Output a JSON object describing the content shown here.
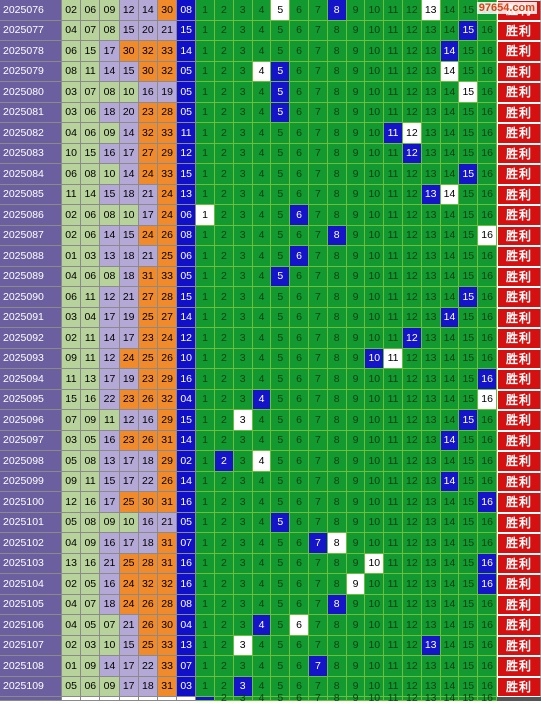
{
  "watermark": "97654.com",
  "result_label": "胜利",
  "colors": {
    "issue_bg": "#6b5fa0",
    "num_green": "#b7d29a",
    "num_lavender": "#b4a9d6",
    "num_orange": "#f08a2a",
    "num_blue": "#1010c8",
    "trend_green": "#129a30",
    "trend_hit": "#1414c8",
    "result_red": "#d41010"
  },
  "trend_numbers": [
    "1",
    "2",
    "3",
    "4",
    "5",
    "6",
    "7",
    "8",
    "9",
    "10",
    "11",
    "12",
    "13",
    "14",
    "15",
    "16"
  ],
  "rows": [
    {
      "issue": "2025076",
      "reds": [
        "02",
        "06",
        "09",
        "12",
        "14",
        "30"
      ],
      "blue": "08"
    },
    {
      "issue": "2025077",
      "reds": [
        "04",
        "07",
        "08",
        "15",
        "20",
        "21"
      ],
      "blue": "15"
    },
    {
      "issue": "2025078",
      "reds": [
        "06",
        "15",
        "17",
        "30",
        "32",
        "33"
      ],
      "blue": "14"
    },
    {
      "issue": "2025079",
      "reds": [
        "08",
        "11",
        "14",
        "15",
        "30",
        "32"
      ],
      "blue": "05"
    },
    {
      "issue": "2025080",
      "reds": [
        "03",
        "07",
        "08",
        "10",
        "16",
        "19"
      ],
      "blue": "05"
    },
    {
      "issue": "2025081",
      "reds": [
        "03",
        "06",
        "18",
        "20",
        "23",
        "28"
      ],
      "blue": "05"
    },
    {
      "issue": "2025082",
      "reds": [
        "04",
        "06",
        "09",
        "14",
        "32",
        "33"
      ],
      "blue": "11"
    },
    {
      "issue": "2025083",
      "reds": [
        "10",
        "15",
        "16",
        "17",
        "27",
        "29"
      ],
      "blue": "12"
    },
    {
      "issue": "2025084",
      "reds": [
        "06",
        "08",
        "10",
        "14",
        "24",
        "33"
      ],
      "blue": "15"
    },
    {
      "issue": "2025085",
      "reds": [
        "11",
        "14",
        "15",
        "18",
        "21",
        "24"
      ],
      "blue": "13"
    },
    {
      "issue": "2025086",
      "reds": [
        "02",
        "06",
        "08",
        "10",
        "17",
        "24"
      ],
      "blue": "06"
    },
    {
      "issue": "2025087",
      "reds": [
        "02",
        "06",
        "14",
        "15",
        "24",
        "26"
      ],
      "blue": "08"
    },
    {
      "issue": "2025088",
      "reds": [
        "01",
        "03",
        "13",
        "18",
        "21",
        "25"
      ],
      "blue": "06"
    },
    {
      "issue": "2025089",
      "reds": [
        "04",
        "06",
        "08",
        "18",
        "31",
        "33"
      ],
      "blue": "05"
    },
    {
      "issue": "2025090",
      "reds": [
        "06",
        "11",
        "12",
        "21",
        "27",
        "28"
      ],
      "blue": "15"
    },
    {
      "issue": "2025091",
      "reds": [
        "03",
        "04",
        "17",
        "19",
        "25",
        "27"
      ],
      "blue": "14"
    },
    {
      "issue": "2025092",
      "reds": [
        "02",
        "11",
        "14",
        "17",
        "23",
        "24"
      ],
      "blue": "12"
    },
    {
      "issue": "2025093",
      "reds": [
        "09",
        "11",
        "12",
        "24",
        "25",
        "26"
      ],
      "blue": "10"
    },
    {
      "issue": "2025094",
      "reds": [
        "11",
        "13",
        "17",
        "19",
        "23",
        "29"
      ],
      "blue": "16"
    },
    {
      "issue": "2025095",
      "reds": [
        "15",
        "16",
        "22",
        "23",
        "26",
        "32"
      ],
      "blue": "04"
    },
    {
      "issue": "2025096",
      "reds": [
        "07",
        "09",
        "11",
        "12",
        "16",
        "29"
      ],
      "blue": "15"
    },
    {
      "issue": "2025097",
      "reds": [
        "03",
        "05",
        "16",
        "23",
        "26",
        "31"
      ],
      "blue": "14"
    },
    {
      "issue": "2025098",
      "reds": [
        "05",
        "08",
        "13",
        "17",
        "18",
        "29"
      ],
      "blue": "02"
    },
    {
      "issue": "2025099",
      "reds": [
        "09",
        "11",
        "15",
        "17",
        "22",
        "26"
      ],
      "blue": "14"
    },
    {
      "issue": "2025100",
      "reds": [
        "12",
        "16",
        "17",
        "25",
        "30",
        "31"
      ],
      "blue": "16"
    },
    {
      "issue": "2025101",
      "reds": [
        "05",
        "08",
        "09",
        "10",
        "16",
        "21"
      ],
      "blue": "05"
    },
    {
      "issue": "2025102",
      "reds": [
        "04",
        "09",
        "16",
        "17",
        "18",
        "31"
      ],
      "blue": "07"
    },
    {
      "issue": "2025103",
      "reds": [
        "13",
        "16",
        "21",
        "25",
        "28",
        "31"
      ],
      "blue": "16"
    },
    {
      "issue": "2025104",
      "reds": [
        "02",
        "05",
        "16",
        "24",
        "32",
        "32"
      ],
      "blue": "16"
    },
    {
      "issue": "2025105",
      "reds": [
        "04",
        "07",
        "18",
        "24",
        "26",
        "28"
      ],
      "blue": "08"
    },
    {
      "issue": "2025106",
      "reds": [
        "04",
        "05",
        "07",
        "21",
        "26",
        "30"
      ],
      "blue": "04"
    },
    {
      "issue": "2025107",
      "reds": [
        "02",
        "03",
        "10",
        "15",
        "25",
        "33"
      ],
      "blue": "13"
    },
    {
      "issue": "2025108",
      "reds": [
        "01",
        "09",
        "14",
        "17",
        "22",
        "33"
      ],
      "blue": "07"
    },
    {
      "issue": "2025109",
      "reds": [
        "05",
        "06",
        "09",
        "17",
        "18",
        "31"
      ],
      "blue": "03"
    }
  ],
  "white_gaps": [
    {
      "row": 0,
      "num": 5
    },
    {
      "row": 0,
      "num": 13
    },
    {
      "row": 3,
      "num": 4
    },
    {
      "row": 3,
      "num": 14
    },
    {
      "row": 4,
      "num": 15
    },
    {
      "row": 6,
      "num": 12
    },
    {
      "row": 9,
      "num": 14
    },
    {
      "row": 10,
      "num": 1
    },
    {
      "row": 11,
      "num": 16
    },
    {
      "row": 17,
      "num": 11
    },
    {
      "row": 19,
      "num": 16
    },
    {
      "row": 20,
      "num": 3
    },
    {
      "row": 22,
      "num": 4
    },
    {
      "row": 26,
      "num": 8
    },
    {
      "row": 27,
      "num": 10
    },
    {
      "row": 28,
      "num": 9
    },
    {
      "row": 30,
      "num": 6
    },
    {
      "row": 31,
      "num": 3
    }
  ],
  "footer": {
    "hit": "1"
  }
}
